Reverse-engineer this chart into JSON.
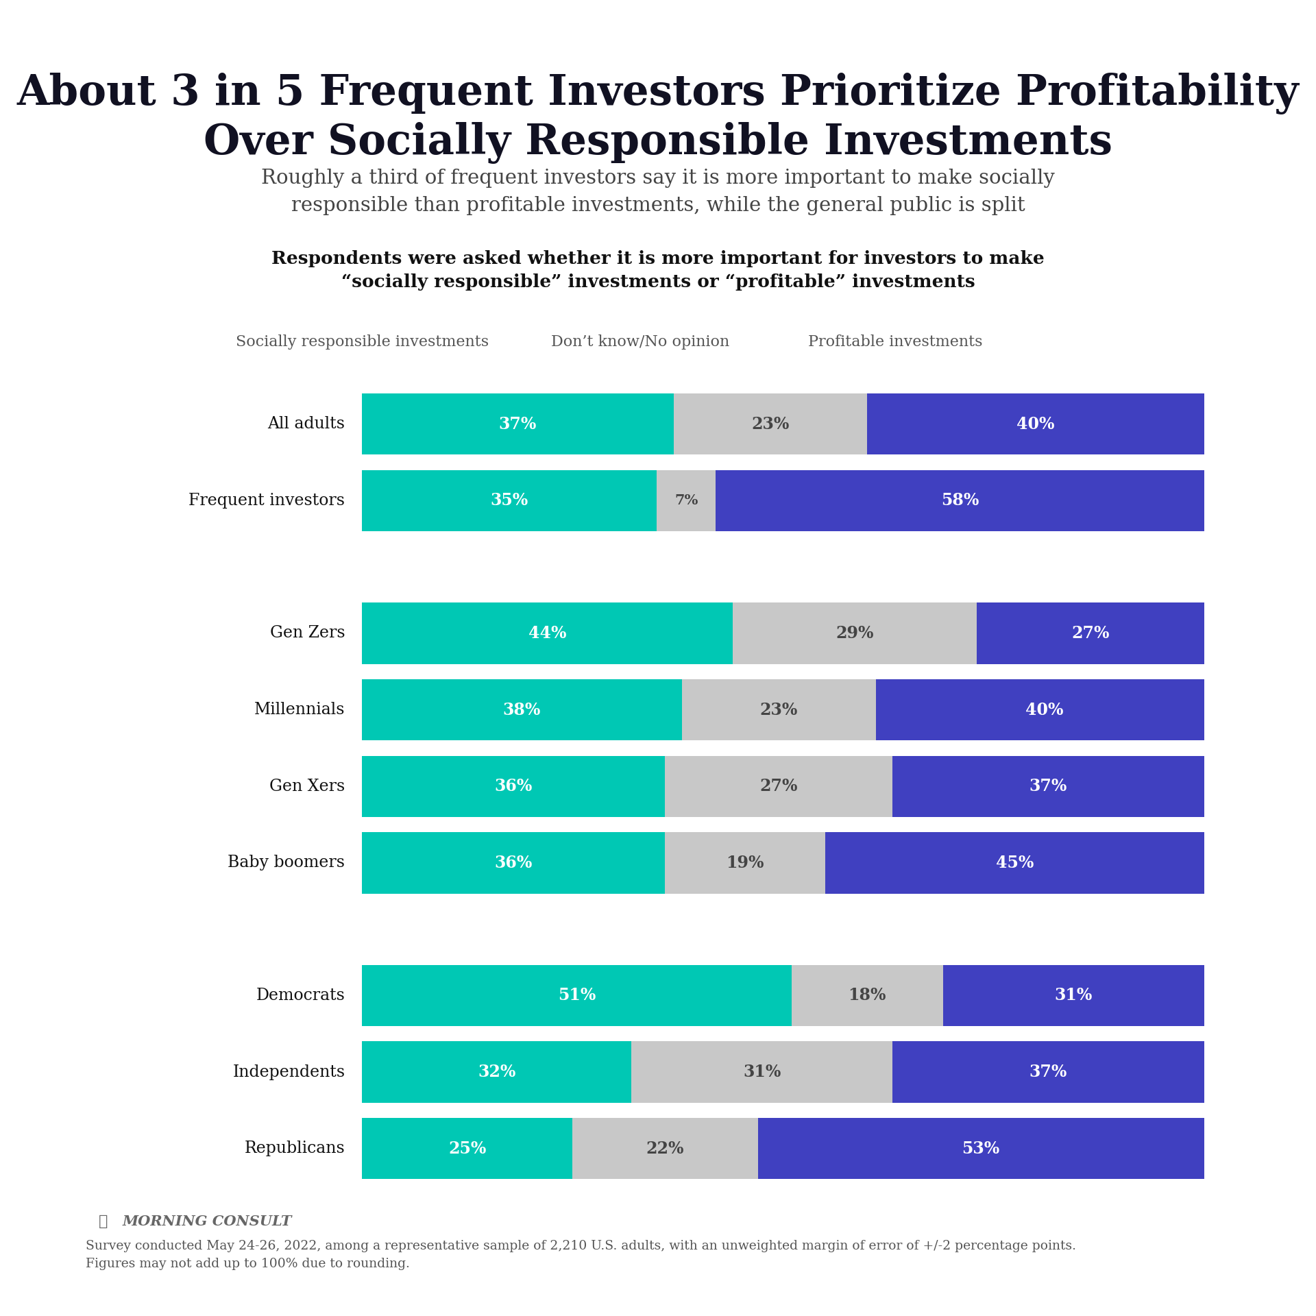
{
  "title": "About 3 in 5 Frequent Investors Prioritize Profitability\nOver Socially Responsible Investments",
  "subtitle": "Roughly a third of frequent investors say it is more important to make socially\nresponsible than profitable investments, while the general public is split",
  "question_text": "Respondents were asked whether it is more important for investors to make\n“socially responsible” investments or “profitable” investments",
  "categories": [
    "All adults",
    "Frequent investors",
    "Gen Zers",
    "Millennials",
    "Gen Xers",
    "Baby boomers",
    "Democrats",
    "Independents",
    "Republicans"
  ],
  "socially_responsible": [
    37,
    35,
    44,
    38,
    36,
    36,
    51,
    32,
    25
  ],
  "dont_know": [
    23,
    7,
    29,
    23,
    27,
    19,
    18,
    31,
    22
  ],
  "profitable": [
    40,
    58,
    27,
    40,
    37,
    45,
    31,
    37,
    53
  ],
  "color_socially": "#00C8B4",
  "color_dont_know": "#C8C8C8",
  "color_profitable": "#4040C0",
  "color_title": "#111122",
  "color_subtitle": "#444444",
  "color_question": "#111111",
  "color_background": "#ffffff",
  "color_top_bar": "#00C8B4",
  "legend_labels": [
    "Socially responsible investments",
    "Don’t know/No opinion",
    "Profitable investments"
  ],
  "footnote": "Survey conducted May 24-26, 2022, among a representative sample of 2,210 U.S. adults, with an unweighted margin of error of +/-2 percentage points.\nFigures may not add up to 100% due to rounding.",
  "morning_consult": "MORNING CONSULT"
}
